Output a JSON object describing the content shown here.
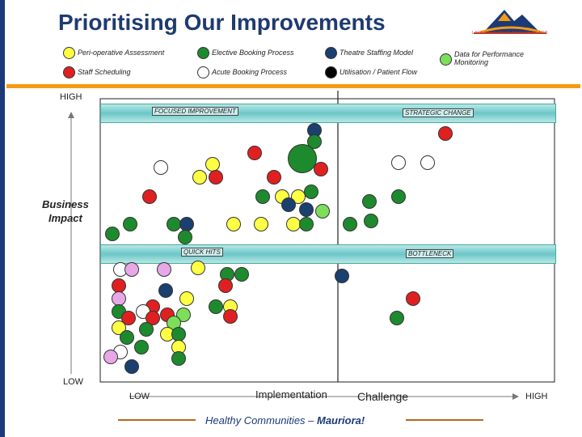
{
  "title": "Prioritising Our Improvements",
  "logo_text": "LAKES DISTRICT HEALTH BOARD",
  "legend": [
    {
      "label": "Peri-operative Assessment",
      "color": "#ffff44"
    },
    {
      "label": "Elective Booking Process",
      "color": "#1e8a2e"
    },
    {
      "label": "Theatre Staffing Model",
      "color": "#1b3f6e"
    },
    {
      "label": "Data for Performance Monitoring",
      "color": "#7dde5a"
    },
    {
      "label": "Staff Scheduling",
      "color": "#e02020"
    },
    {
      "label": "Acute Booking Process",
      "color": "#ffffff"
    },
    {
      "label": "Utilisation / Patient Flow",
      "color": "#000000"
    }
  ],
  "axes": {
    "y_high": "HIGH",
    "y_low": "LOW",
    "y_label_line1": "Business",
    "y_label_line2": "Impact",
    "x_low": "LOW",
    "x_label": "Implementation",
    "x_label2": "Challenge",
    "x_high": "HIGH"
  },
  "quadrants": {
    "top_left": "FOCUSED IMPROVEMENT",
    "top_right": "STRATEGIC CHANGE",
    "bottom_left": "QUICK HITS",
    "bottom_right": "BOTTLENECK"
  },
  "footer": {
    "prefix": "Healthy Communities – ",
    "suffix": "Mauriora!"
  }
}
